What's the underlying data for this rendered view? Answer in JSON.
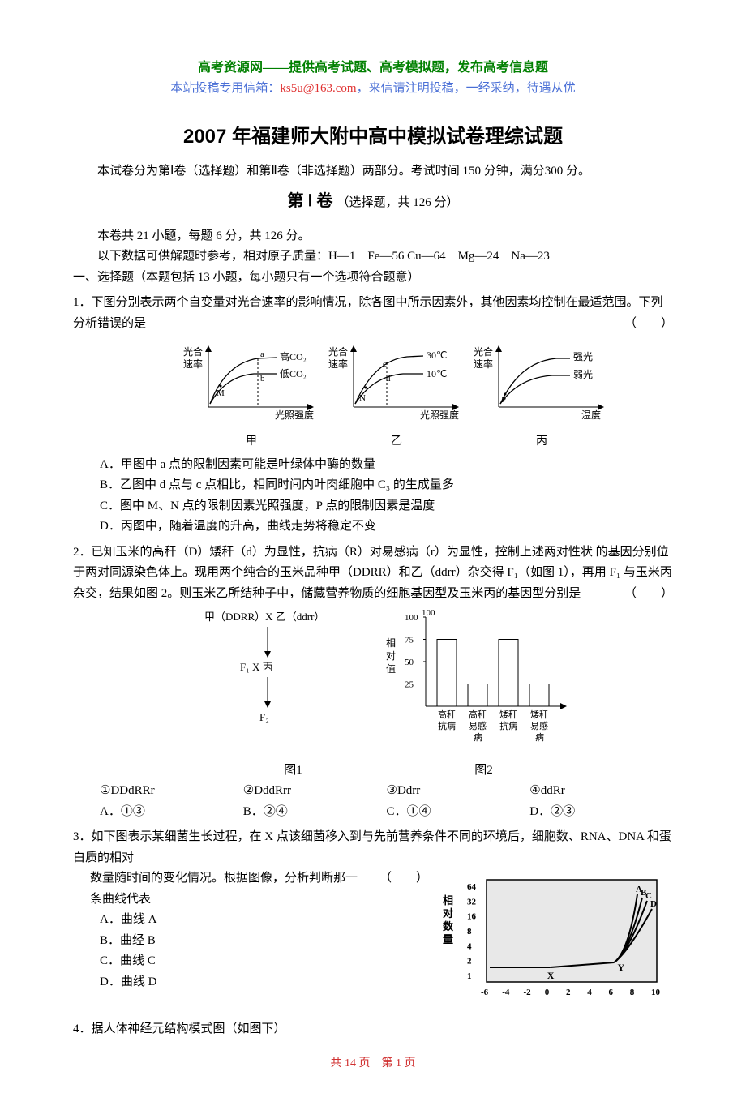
{
  "header": {
    "site_title": "高考资源网——提供高考试题、高考模拟题，发布高考信息题",
    "site_sub_pre": "本站投稿专用信箱：",
    "site_email": "ks5u@163.com",
    "site_sub_post": "，来信请注明投稿，一经采纳，待遇从优"
  },
  "exam_title": "2007 年福建师大附中高中模拟试卷理综试题",
  "intro": "本试卷分为第Ⅰ卷（选择题）和第Ⅱ卷（非选择题）两部分。考试时间 150 分钟，满分300 分。",
  "section1": {
    "label": "第 Ⅰ 卷",
    "note": "（选择题，共 126 分）"
  },
  "info1": "本卷共 21 小题，每题 6 分，共 126 分。",
  "info2": "以下数据可供解题时参考，相对原子质量：H—1　Fe—56 Cu—64　Mg—24　Na—23",
  "part1_title": "一、选择题（本题包括 13 小题，每小题只有一个选项符合题意）",
  "q1": {
    "stem1": "1．下图分别表示两个自变量对光合速率的影响情况，除各图中所示因素外，其他因素均控制在最适范围。下列分析错误的是",
    "paren": "（　　）",
    "optA": "A．甲图中 a 点的限制因素可能是叶绿体中酶的数量",
    "optB": "B．乙图中 d 点与 c 点相比，相同时间内叶肉细胞中 C₃ 的生成量多",
    "optC": "C．图中 M、N 点的限制因素光照强度，P 点的限制因素是温度",
    "optD": "D．丙图中，随着温度的升高，曲线走势将稳定不变",
    "graphs": {
      "jia": {
        "ylabel1": "光合",
        "ylabel2": "速率",
        "xlabel": "光照强度",
        "curve1_label": "高CO₂",
        "curve2_label": "低CO₂",
        "pt_a": "a",
        "pt_b": "b",
        "pt_M": "M",
        "caption": "甲"
      },
      "yi": {
        "ylabel1": "光合",
        "ylabel2": "速率",
        "xlabel": "光照强度",
        "curve1_label": "30℃",
        "curve2_label": "10℃",
        "pt_c": "c",
        "pt_d": "d",
        "pt_N": "N",
        "caption": "乙"
      },
      "bing": {
        "ylabel1": "光合",
        "ylabel2": "速率",
        "xlabel": "温度",
        "curve1_label": "强光",
        "curve2_label": "弱光",
        "pt_P": "P",
        "caption": "丙"
      },
      "style": {
        "axis_color": "#000000",
        "curve_color": "#000000",
        "dash": "3,2",
        "font_size": 12
      }
    }
  },
  "q2": {
    "stem": "2．已知玉米的高秆（D）矮秆（d）为显性，抗病（R）对易感病（r）为显性，控制上述两对性状 的基因分别位于两对同源染色体上。现用两个纯合的玉米品种甲（DDRR）和乙（ddrr）杂交得 F₁（如图 1），再用 F₁ 与玉米丙杂交，结果如图 2。则玉米乙所结种子中，储藏营养物质的细胞基因型及玉米丙的基因型分别是",
    "paren": "（　　）",
    "fig1": {
      "top": "甲（DDRR）X 乙（ddrr）",
      "f1": "F₁ X 丙",
      "f2": "F₂",
      "caption": "图1"
    },
    "fig2": {
      "ylabel": "相对值",
      "yticks": [
        25,
        50,
        75,
        100
      ],
      "bars": [
        {
          "label1": "高秆",
          "label2": "抗病",
          "value": 75
        },
        {
          "label1": "高秆",
          "label2": "易感",
          "label3": "病",
          "value": 25
        },
        {
          "label1": "矮秆",
          "label2": "抗病",
          "value": 75
        },
        {
          "label1": "矮秆",
          "label2": "易感",
          "label3": "病",
          "value": 25
        }
      ],
      "caption": "图2",
      "style": {
        "bar_fill": "#ffffff",
        "bar_stroke": "#000000",
        "axis_color": "#000000",
        "font_size": 12
      }
    },
    "choices": {
      "c1": "①DDdRRr",
      "c2": "②DddRrr",
      "c3": "③Ddrr",
      "c4": "④ddRr"
    },
    "opts": {
      "A": "A．①③",
      "B": "B．②④",
      "C": "C．①④",
      "D": "D．②③"
    }
  },
  "q3": {
    "stem1": "3．如下图表示某细菌生长过程，在 X 点该细菌移入到与先前营养条件不同的环境后，细胞数、RNA、DNA 和蛋白质的相对",
    "stem2": "数量随时间的变化情况。根据图像，分析判断那一条曲线代表",
    "paren": "（　　）",
    "optA": "A．曲线 A",
    "optB": "B．曲经 B",
    "optC": "C．曲线 C",
    "optD": "D．曲线 D",
    "graph": {
      "ylabel": "相对数量",
      "yticks": [
        "1",
        "2",
        "4",
        "8",
        "16",
        "32",
        "64"
      ],
      "xticks": [
        "-6",
        "-4",
        "-2",
        "0",
        "2",
        "4",
        "6",
        "8",
        "10"
      ],
      "series": [
        "A",
        "B",
        "C",
        "D"
      ],
      "pt_X": "X",
      "pt_Y": "Y",
      "style": {
        "axis_color": "#000000",
        "bg": "#e8e8e8",
        "font_size": 12
      }
    }
  },
  "q4": {
    "stem": "4．据人体神经元结构模式图（如图下）"
  },
  "footer": "共 14 页　第 1 页"
}
